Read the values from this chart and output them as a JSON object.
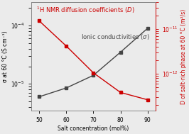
{
  "x": [
    50,
    60,
    70,
    80,
    90
  ],
  "sigma": [
    6e-06,
    8.5e-06,
    1.4e-05,
    3.5e-05,
    9e-05
  ],
  "D": [
    1.55e-11,
    4.2e-12,
    1.05e-12,
    3.8e-13,
    2.6e-13
  ],
  "sigma_color": "#444444",
  "D_color": "#cc0000",
  "xlabel": "Salt concentration (mol%)",
  "ylabel_left": "σ at 60 °C (S cm⁻¹)",
  "ylabel_right": "D of salt-rich phase at 60 °C (m²/s)",
  "label_sigma": "Ionic conductivities (σ)",
  "label_D_prefix": "H NMR diffusion coefficients (",
  "xlim": [
    47,
    93
  ],
  "ylim_left": [
    3.5e-06,
    0.00025
  ],
  "ylim_right": [
    1.5e-13,
    4e-11
  ],
  "xticks": [
    50,
    60,
    70,
    80,
    90
  ],
  "background": "#ebebeb",
  "marker": "s",
  "markersize": 3.5,
  "linewidth": 1.0,
  "annot_fontsize": 6.0,
  "label_fontsize": 5.5,
  "tick_fontsize": 5.5,
  "ylabel_fontsize": 5.5
}
